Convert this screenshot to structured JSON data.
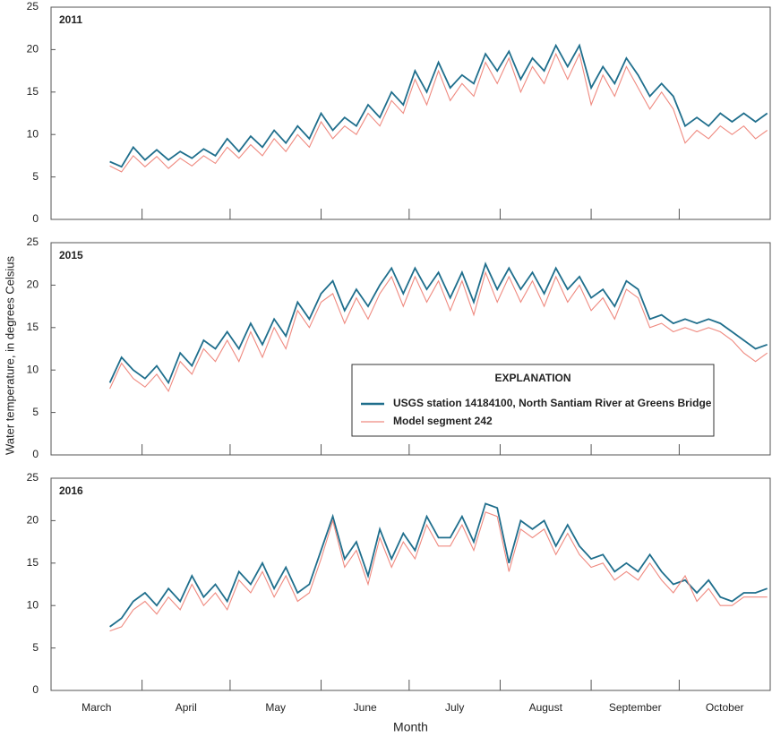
{
  "chart_data": [
    {
      "type": "line",
      "title": "2011",
      "x": [
        20,
        24,
        28,
        32,
        36,
        40,
        44,
        48,
        52,
        56,
        60,
        64,
        68,
        72,
        76,
        80,
        84,
        88,
        92,
        96,
        100,
        104,
        108,
        112,
        116,
        120,
        124,
        128,
        132,
        136,
        140,
        144,
        148,
        152,
        156,
        160,
        164,
        168,
        172,
        176,
        180,
        184,
        188,
        192,
        196,
        200,
        204,
        208,
        212,
        216,
        220,
        224,
        228,
        232,
        236,
        240,
        244
      ],
      "xlim": [
        0,
        245
      ],
      "xticks": [
        0,
        31,
        61,
        92,
        122,
        153,
        184,
        214,
        245
      ],
      "ylim": [
        0,
        25
      ],
      "yticks": [
        0,
        5,
        10,
        15,
        20,
        25
      ],
      "series": [
        {
          "name": "USGS station 14184100, North Santiam River at Greens Bridge",
          "color": "#1f6e8c",
          "values": [
            6.8,
            6.2,
            8.5,
            7.0,
            8.2,
            7.0,
            8.0,
            7.2,
            8.3,
            7.5,
            9.5,
            8.0,
            9.8,
            8.5,
            10.5,
            9.0,
            11.0,
            9.5,
            12.5,
            10.5,
            12.0,
            11.0,
            13.5,
            12.0,
            15.0,
            13.5,
            17.5,
            15.0,
            18.5,
            15.5,
            17.0,
            16.0,
            19.5,
            17.5,
            19.8,
            16.5,
            19.0,
            17.5,
            20.5,
            18.0,
            20.5,
            15.5,
            18.0,
            16.0,
            19.0,
            17.0,
            14.5,
            16.0,
            14.5,
            11.0,
            12.0,
            11.0,
            12.5,
            11.5,
            12.5,
            11.5,
            12.5
          ]
        },
        {
          "name": "Model segment 242",
          "color": "#ef8a80",
          "values": [
            6.3,
            5.6,
            7.5,
            6.2,
            7.4,
            6.0,
            7.2,
            6.3,
            7.5,
            6.6,
            8.5,
            7.2,
            8.8,
            7.5,
            9.5,
            8.0,
            10.0,
            8.5,
            11.5,
            9.5,
            11.0,
            10.0,
            12.5,
            11.0,
            14.0,
            12.5,
            16.5,
            13.5,
            17.5,
            14.0,
            16.0,
            14.5,
            18.5,
            16.0,
            19.0,
            15.0,
            18.0,
            16.0,
            19.5,
            16.5,
            19.5,
            13.5,
            17.0,
            14.5,
            18.0,
            15.5,
            13.0,
            15.0,
            13.0,
            9.0,
            10.5,
            9.5,
            11.0,
            10.0,
            11.0,
            9.5,
            10.5
          ]
        }
      ]
    },
    {
      "type": "line",
      "title": "2015",
      "ylabel": "Water temperature, in degrees Celsius",
      "legend_title": "EXPLANATION",
      "legend": "lower right",
      "x": [
        20,
        24,
        28,
        32,
        36,
        40,
        44,
        48,
        52,
        56,
        60,
        64,
        68,
        72,
        76,
        80,
        84,
        88,
        92,
        96,
        100,
        104,
        108,
        112,
        116,
        120,
        124,
        128,
        132,
        136,
        140,
        144,
        148,
        152,
        156,
        160,
        164,
        168,
        172,
        176,
        180,
        184,
        188,
        192,
        196,
        200,
        204,
        208,
        212,
        216,
        220,
        224,
        228,
        232,
        236,
        240,
        244
      ],
      "xlim": [
        0,
        245
      ],
      "xticks": [
        0,
        31,
        61,
        92,
        122,
        153,
        184,
        214,
        245
      ],
      "ylim": [
        0,
        25
      ],
      "yticks": [
        0,
        5,
        10,
        15,
        20,
        25
      ],
      "series": [
        {
          "name": "USGS station 14184100, North Santiam River at Greens Bridge",
          "color": "#1f6e8c",
          "values": [
            8.5,
            11.5,
            10.0,
            9.0,
            10.5,
            8.5,
            12.0,
            10.5,
            13.5,
            12.5,
            14.5,
            12.5,
            15.5,
            13.0,
            16.0,
            14.0,
            18.0,
            16.0,
            19.0,
            20.5,
            17.0,
            19.5,
            17.5,
            20.0,
            22.0,
            19.0,
            22.0,
            19.5,
            21.5,
            18.5,
            21.5,
            18.0,
            22.5,
            19.5,
            22.0,
            19.5,
            21.5,
            19.0,
            22.0,
            19.5,
            21.0,
            18.5,
            19.5,
            17.5,
            20.5,
            19.5,
            16.0,
            16.5,
            15.5,
            16.0,
            15.5,
            16.0,
            15.5,
            14.5,
            13.5,
            12.5,
            13.0
          ]
        },
        {
          "name": "Model segment 242",
          "color": "#ef8a80",
          "values": [
            7.8,
            10.8,
            9.0,
            8.0,
            9.5,
            7.5,
            11.0,
            9.5,
            12.5,
            11.0,
            13.5,
            11.0,
            14.5,
            11.5,
            15.0,
            12.5,
            17.0,
            15.0,
            18.0,
            19.0,
            15.5,
            18.5,
            16.0,
            19.0,
            21.0,
            17.5,
            21.0,
            18.0,
            20.5,
            17.0,
            20.5,
            16.5,
            21.5,
            18.0,
            21.0,
            18.0,
            20.5,
            17.5,
            21.0,
            18.0,
            20.0,
            17.0,
            18.5,
            16.0,
            19.5,
            18.5,
            15.0,
            15.5,
            14.5,
            15.0,
            14.5,
            15.0,
            14.5,
            13.5,
            12.0,
            11.0,
            12.0
          ]
        }
      ]
    },
    {
      "type": "line",
      "title": "2016",
      "xlabel": "Month",
      "categories": [
        "March",
        "April",
        "May",
        "June",
        "July",
        "August",
        "September",
        "October"
      ],
      "x": [
        20,
        24,
        28,
        32,
        36,
        40,
        44,
        48,
        52,
        56,
        60,
        64,
        68,
        72,
        76,
        80,
        84,
        88,
        92,
        96,
        100,
        104,
        108,
        112,
        116,
        120,
        124,
        128,
        132,
        136,
        140,
        144,
        148,
        152,
        156,
        160,
        164,
        168,
        172,
        176,
        180,
        184,
        188,
        192,
        196,
        200,
        204,
        208,
        212,
        216,
        220,
        224,
        228,
        232,
        236,
        240,
        244
      ],
      "xlim": [
        0,
        245
      ],
      "xticks": [
        0,
        31,
        61,
        92,
        122,
        153,
        184,
        214,
        245
      ],
      "ylim": [
        0,
        25
      ],
      "yticks": [
        0,
        5,
        10,
        15,
        20,
        25
      ],
      "series": [
        {
          "name": "USGS station 14184100, North Santiam River at Greens Bridge",
          "color": "#1f6e8c",
          "values": [
            7.5,
            8.5,
            10.5,
            11.5,
            10.0,
            12.0,
            10.5,
            13.5,
            11.0,
            12.5,
            10.5,
            14.0,
            12.5,
            15.0,
            12.0,
            14.5,
            11.5,
            12.5,
            16.5,
            20.5,
            15.5,
            17.5,
            13.5,
            19.0,
            15.5,
            18.5,
            16.5,
            20.5,
            18.0,
            18.0,
            20.5,
            17.5,
            22.0,
            21.5,
            15.0,
            20.0,
            19.0,
            20.0,
            17.0,
            19.5,
            17.0,
            15.5,
            16.0,
            14.0,
            15.0,
            14.0,
            16.0,
            14.0,
            12.5,
            13.0,
            11.5,
            13.0,
            11.0,
            10.5,
            11.5,
            11.5,
            12.0
          ]
        },
        {
          "name": "Model segment 242",
          "color": "#ef8a80",
          "values": [
            7.0,
            7.5,
            9.5,
            10.5,
            9.0,
            11.0,
            9.5,
            12.5,
            10.0,
            11.5,
            9.5,
            13.0,
            11.5,
            14.0,
            11.0,
            13.5,
            10.5,
            11.5,
            15.5,
            20.0,
            14.5,
            16.5,
            12.5,
            18.0,
            14.5,
            17.5,
            15.5,
            19.5,
            17.0,
            17.0,
            19.5,
            16.5,
            21.0,
            20.5,
            14.0,
            19.0,
            18.0,
            19.0,
            16.0,
            18.5,
            16.0,
            14.5,
            15.0,
            13.0,
            14.0,
            13.0,
            15.0,
            13.0,
            11.5,
            13.5,
            10.5,
            12.0,
            10.0,
            10.0,
            11.0,
            11.0,
            11.0
          ]
        }
      ]
    }
  ]
}
